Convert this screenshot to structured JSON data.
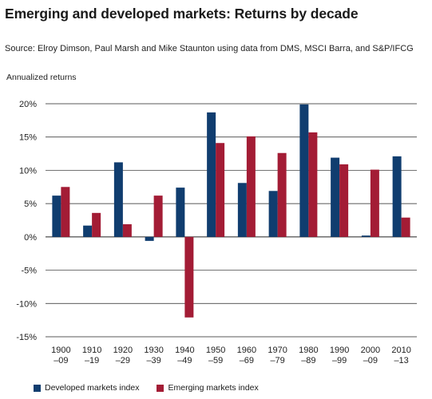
{
  "title": "Emerging and developed markets: Returns by decade",
  "source": "Source: Elroy Dimson, Paul Marsh and Mike Staunton using data from DMS, MSCI Barra, and S&P/IFCG",
  "colors": {
    "developed": "#103d6f",
    "emerging": "#a31c35",
    "gridline": "#222222"
  },
  "chart_data": {
    "type": "bar",
    "ylabel": "Annualized returns",
    "ylim": [
      -15,
      20
    ],
    "yticks": [
      "20%",
      "15%",
      "10%",
      "5%",
      "0%",
      "-5%",
      "-10%",
      "-15%"
    ],
    "ytick_values": [
      20,
      15,
      10,
      5,
      0,
      -5,
      -10,
      -15
    ],
    "grid": true,
    "legend_position": "bottom-left",
    "categories": [
      [
        "1900",
        "–09"
      ],
      [
        "1910",
        "–19"
      ],
      [
        "1920",
        "–29"
      ],
      [
        "1930",
        "–39"
      ],
      [
        "1940",
        "–49"
      ],
      [
        "1950",
        "–59"
      ],
      [
        "1960",
        "–69"
      ],
      [
        "1970",
        "–79"
      ],
      [
        "1980",
        "–89"
      ],
      [
        "1990",
        "–99"
      ],
      [
        "2000",
        "–09"
      ],
      [
        "2010",
        "–13"
      ]
    ],
    "series": [
      {
        "name": "Developed markets index",
        "values": [
          6.2,
          1.7,
          11.2,
          -0.6,
          7.4,
          18.7,
          8.1,
          6.9,
          19.9,
          11.9,
          0.2,
          12.1
        ]
      },
      {
        "name": "Emerging markets index",
        "values": [
          7.5,
          3.6,
          1.9,
          6.2,
          -12.1,
          14.1,
          15.1,
          12.6,
          15.7,
          10.9,
          10.1,
          2.9
        ]
      }
    ]
  }
}
